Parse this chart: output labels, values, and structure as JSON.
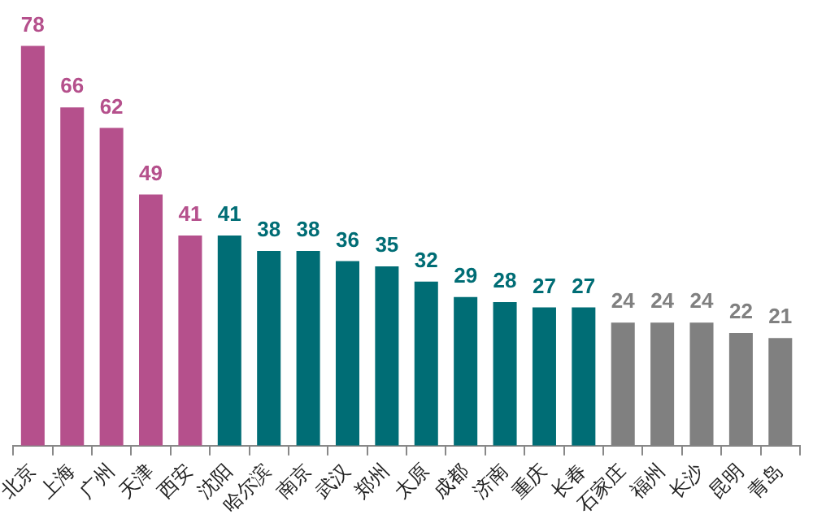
{
  "chart_data": {
    "type": "bar",
    "categories": [
      "北京",
      "上海",
      "广州",
      "天津",
      "西安",
      "沈阳",
      "哈尔滨",
      "南京",
      "武汉",
      "郑州",
      "太原",
      "成都",
      "济南",
      "重庆",
      "长春",
      "石家庄",
      "福州",
      "长沙",
      "昆明",
      "青岛"
    ],
    "values": [
      78,
      66,
      62,
      49,
      41,
      41,
      38,
      38,
      36,
      35,
      32,
      29,
      28,
      27,
      27,
      24,
      24,
      24,
      22,
      21
    ],
    "colors": [
      "#b5508c",
      "#b5508c",
      "#b5508c",
      "#b5508c",
      "#b5508c",
      "#006d75",
      "#006d75",
      "#006d75",
      "#006d75",
      "#006d75",
      "#006d75",
      "#006d75",
      "#006d75",
      "#006d75",
      "#006d75",
      "#808080",
      "#808080",
      "#808080",
      "#808080",
      "#808080"
    ],
    "data_labels": true,
    "tick_labels": "x",
    "grid": false,
    "legend": false
  }
}
